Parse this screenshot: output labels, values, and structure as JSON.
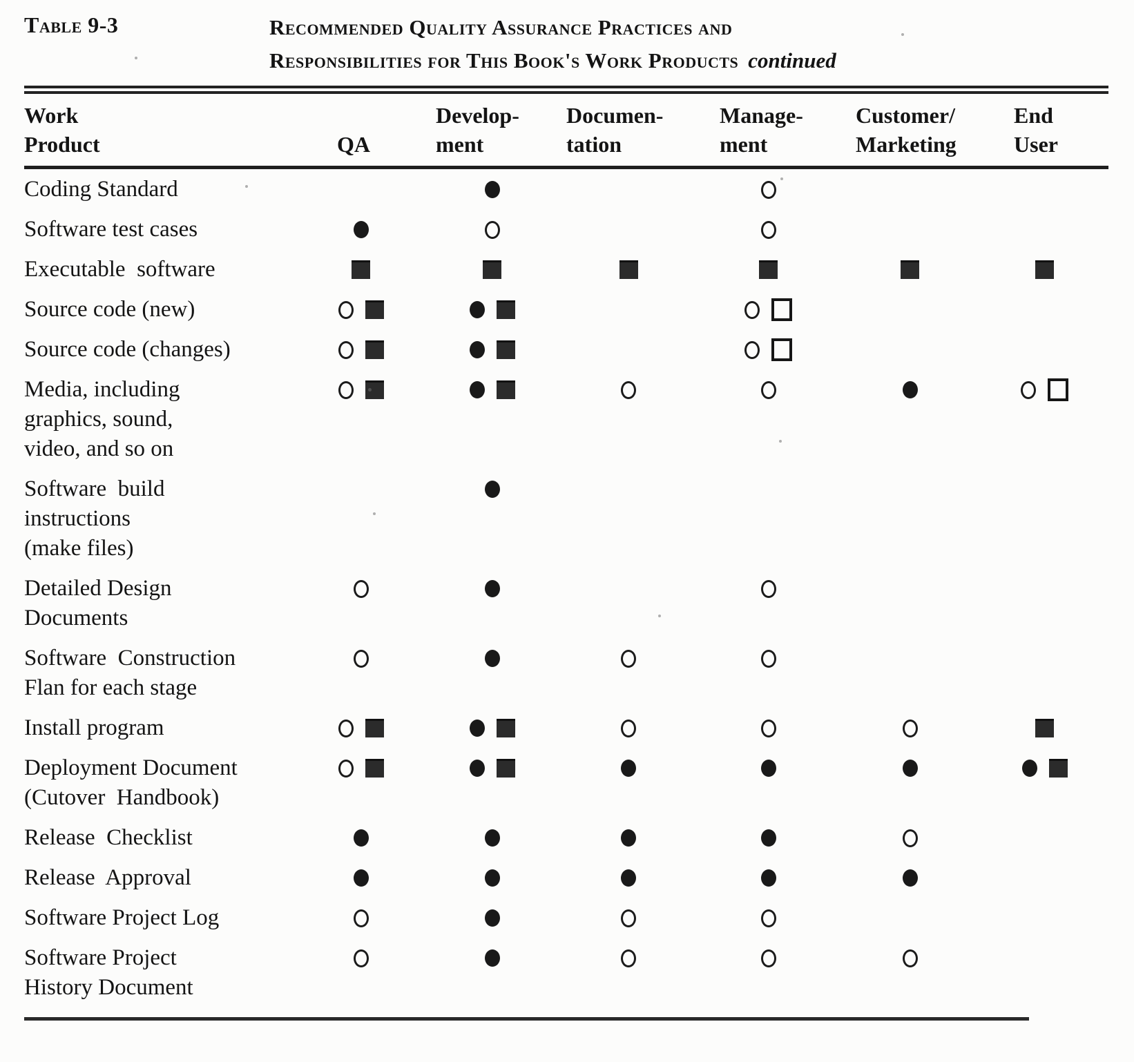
{
  "caption": {
    "table_label": "Table 9-3",
    "title_line1": "Recommended Quality Assurance Practices and",
    "title_line2": "Responsibilities for This Book's Work Products",
    "continued": "continued"
  },
  "symbols": {
    "open-circle": "○",
    "filled-circle": "●",
    "filled-square": "■",
    "open-square": "□"
  },
  "ink_color": "#141414",
  "paper_color": "#fcfcfb",
  "table": {
    "columns": [
      {
        "id": "work_product",
        "lines": [
          "Work",
          "Product"
        ]
      },
      {
        "id": "qa",
        "lines": [
          "",
          "QA"
        ]
      },
      {
        "id": "development",
        "lines": [
          "Develop-",
          "ment"
        ]
      },
      {
        "id": "documentation",
        "lines": [
          "Documen-",
          "tation"
        ]
      },
      {
        "id": "management",
        "lines": [
          "Manage-",
          "ment"
        ]
      },
      {
        "id": "customer_marketing",
        "lines": [
          "Customer/",
          "Marketing"
        ]
      },
      {
        "id": "end_user",
        "lines": [
          "End",
          "User"
        ]
      }
    ],
    "rows": [
      {
        "name_lines": [
          "Coding Standard"
        ],
        "cells": {
          "qa": [],
          "development": [
            "filled-circle"
          ],
          "documentation": [],
          "management": [
            "open-circle"
          ],
          "customer_marketing": [],
          "end_user": []
        }
      },
      {
        "name_lines": [
          "Software test cases"
        ],
        "cells": {
          "qa": [
            "filled-circle"
          ],
          "development": [
            "open-circle"
          ],
          "documentation": [],
          "management": [
            "open-circle"
          ],
          "customer_marketing": [],
          "end_user": []
        }
      },
      {
        "name_lines": [
          "Executable  software"
        ],
        "cells": {
          "qa": [
            "filled-square"
          ],
          "development": [
            "filled-square"
          ],
          "documentation": [
            "filled-square"
          ],
          "management": [
            "filled-square"
          ],
          "customer_marketing": [
            "filled-square"
          ],
          "end_user": [
            "filled-square"
          ]
        }
      },
      {
        "name_lines": [
          "Source code (new)"
        ],
        "cells": {
          "qa": [
            "open-circle",
            "filled-square"
          ],
          "development": [
            "filled-circle",
            "filled-square"
          ],
          "documentation": [],
          "management": [
            "open-circle",
            "open-square"
          ],
          "customer_marketing": [],
          "end_user": []
        }
      },
      {
        "name_lines": [
          "Source code (changes)"
        ],
        "cells": {
          "qa": [
            "open-circle",
            "filled-square"
          ],
          "development": [
            "filled-circle",
            "filled-square"
          ],
          "documentation": [],
          "management": [
            "open-circle",
            "open-square"
          ],
          "customer_marketing": [],
          "end_user": []
        }
      },
      {
        "name_lines": [
          "Media, including",
          "graphics, sound,",
          "video, and so on"
        ],
        "cells": {
          "qa": [
            "open-circle",
            "filled-square"
          ],
          "development": [
            "filled-circle",
            "filled-square"
          ],
          "documentation": [
            "open-circle"
          ],
          "management": [
            "open-circle"
          ],
          "customer_marketing": [
            "filled-circle"
          ],
          "end_user": [
            "open-circle",
            "open-square"
          ]
        }
      },
      {
        "name_lines": [
          "Software  build",
          "instructions",
          "(make files)"
        ],
        "cells": {
          "qa": [],
          "development": [
            "filled-circle"
          ],
          "documentation": [],
          "management": [],
          "customer_marketing": [],
          "end_user": []
        }
      },
      {
        "name_lines": [
          "Detailed Design",
          "Documents"
        ],
        "cells": {
          "qa": [
            "open-circle"
          ],
          "development": [
            "filled-circle"
          ],
          "documentation": [],
          "management": [
            "open-circle"
          ],
          "customer_marketing": [],
          "end_user": []
        }
      },
      {
        "name_lines": [
          "Software  Construction",
          "Flan for each stage"
        ],
        "cells": {
          "qa": [
            "open-circle"
          ],
          "development": [
            "filled-circle"
          ],
          "documentation": [
            "open-circle"
          ],
          "management": [
            "open-circle"
          ],
          "customer_marketing": [],
          "end_user": []
        }
      },
      {
        "name_lines": [
          "Install program"
        ],
        "cells": {
          "qa": [
            "open-circle",
            "filled-square"
          ],
          "development": [
            "filled-circle",
            "filled-square"
          ],
          "documentation": [
            "open-circle"
          ],
          "management": [
            "open-circle"
          ],
          "customer_marketing": [
            "open-circle"
          ],
          "end_user": [
            "filled-square"
          ]
        }
      },
      {
        "name_lines": [
          "Deployment Document",
          "(Cutover  Handbook)"
        ],
        "cells": {
          "qa": [
            "open-circle",
            "filled-square"
          ],
          "development": [
            "filled-circle",
            "filled-square"
          ],
          "documentation": [
            "filled-circle"
          ],
          "management": [
            "filled-circle"
          ],
          "customer_marketing": [
            "filled-circle"
          ],
          "end_user": [
            "filled-circle",
            "filled-square"
          ]
        }
      },
      {
        "name_lines": [
          "Release  Checklist"
        ],
        "cells": {
          "qa": [
            "filled-circle"
          ],
          "development": [
            "filled-circle"
          ],
          "documentation": [
            "filled-circle"
          ],
          "management": [
            "filled-circle"
          ],
          "customer_marketing": [
            "open-circle"
          ],
          "end_user": []
        }
      },
      {
        "name_lines": [
          "Release  Approval"
        ],
        "cells": {
          "qa": [
            "filled-circle"
          ],
          "development": [
            "filled-circle"
          ],
          "documentation": [
            "filled-circle"
          ],
          "management": [
            "filled-circle"
          ],
          "customer_marketing": [
            "filled-circle"
          ],
          "end_user": []
        }
      },
      {
        "name_lines": [
          "Software Project Log"
        ],
        "cells": {
          "qa": [
            "open-circle"
          ],
          "development": [
            "filled-circle"
          ],
          "documentation": [
            "open-circle"
          ],
          "management": [
            "open-circle"
          ],
          "customer_marketing": [],
          "end_user": []
        }
      },
      {
        "name_lines": [
          "Software Project",
          "History Document"
        ],
        "cells": {
          "qa": [
            "open-circle"
          ],
          "development": [
            "filled-circle"
          ],
          "documentation": [
            "open-circle"
          ],
          "management": [
            "open-circle"
          ],
          "customer_marketing": [
            "open-circle"
          ],
          "end_user": []
        }
      }
    ]
  }
}
